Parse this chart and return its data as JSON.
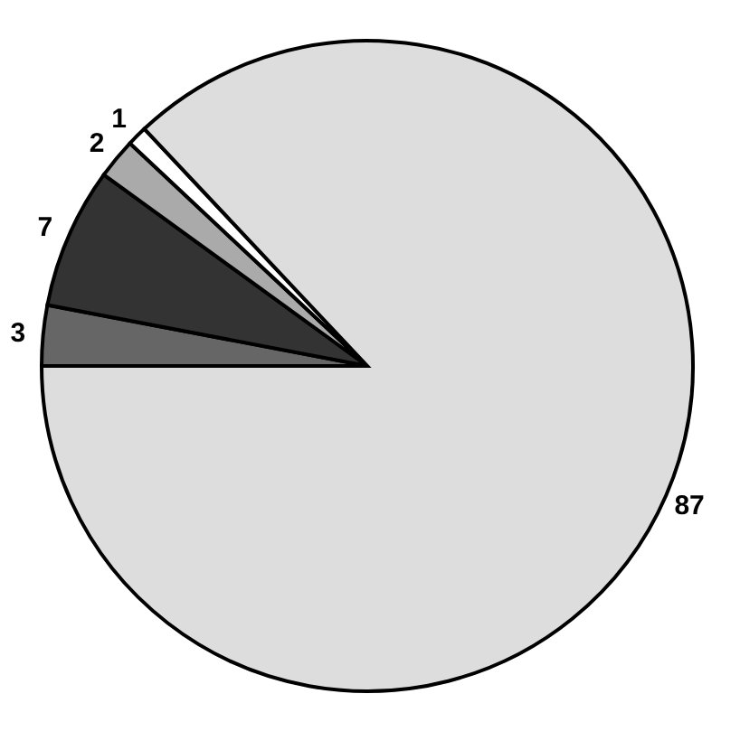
{
  "chart_data": {
    "type": "pie",
    "categories": [
      null,
      null,
      null,
      null,
      null
    ],
    "values": [
      3,
      7,
      2,
      1,
      87
    ],
    "colors": [
      "#666666",
      "#333333",
      "#aaaaaa",
      "#ffffff",
      "#dddddd"
    ],
    "data_labels": true
  }
}
